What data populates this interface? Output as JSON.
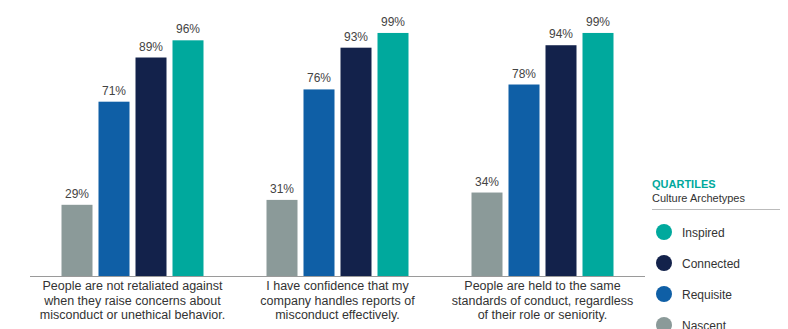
{
  "chart_data": {
    "type": "bar",
    "categories": [
      [
        "People are not retaliated against",
        "when they raise concerns about",
        "misconduct or unethical behavior."
      ],
      [
        "I have confidence that my",
        "company handles reports of",
        "misconduct effectively."
      ],
      [
        "People are held to the same",
        "standards of conduct, regardless",
        "of their role or seniority."
      ]
    ],
    "series": [
      {
        "name": "Nascent",
        "color": "#8b9a99",
        "values": [
          29,
          31,
          34
        ],
        "value_labels": [
          "29%",
          "31%",
          "34%"
        ]
      },
      {
        "name": "Requisite",
        "color": "#0f5fa6",
        "values": [
          71,
          76,
          78
        ],
        "value_labels": [
          "71%",
          "76%",
          "78%"
        ]
      },
      {
        "name": "Connected",
        "color": "#13224b",
        "values": [
          89,
          93,
          94
        ],
        "value_labels": [
          "89%",
          "93%",
          "94%"
        ]
      },
      {
        "name": "Inspired",
        "color": "#00a99d",
        "values": [
          96,
          99,
          99
        ],
        "value_labels": [
          "96%",
          "99%",
          "99%"
        ]
      }
    ],
    "legend_title": "QUARTILES",
    "legend_subtitle": "Culture Archetypes",
    "ylim": [
      0,
      100
    ],
    "grid": false,
    "legend": "right",
    "data_labels": true,
    "tick_labels": false
  }
}
